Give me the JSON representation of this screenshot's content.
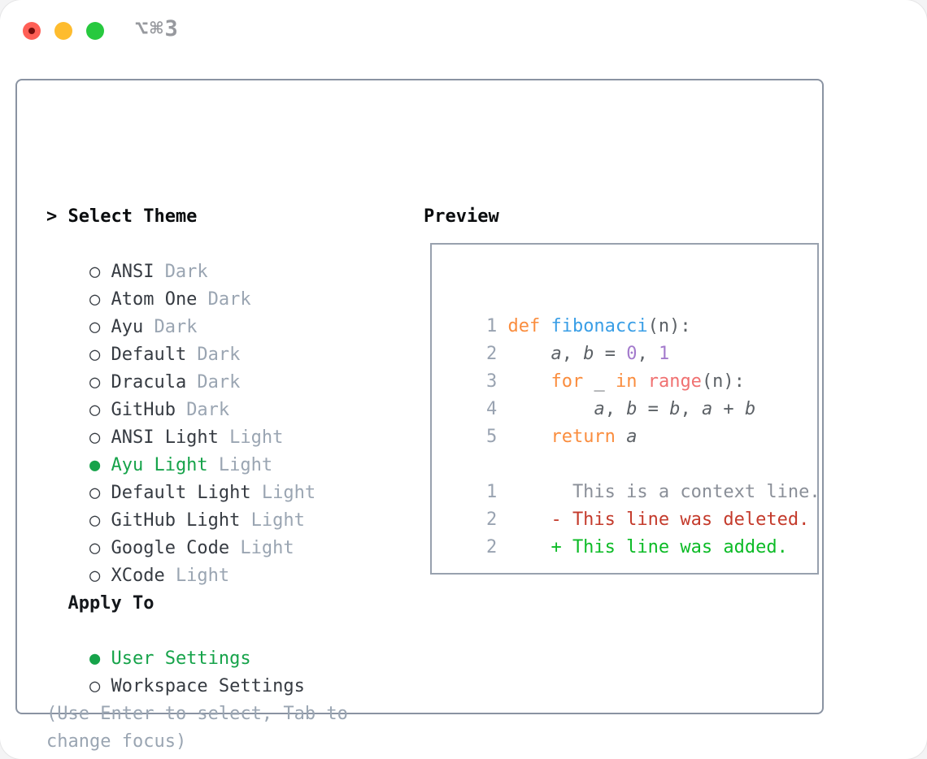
{
  "titlebar": {
    "shortcut": "⌥⌘3",
    "buttons": [
      "close",
      "minimize",
      "zoom"
    ]
  },
  "theme_selector": {
    "header_marker": ">",
    "header": "Select Theme",
    "radio_unselected": "○",
    "radio_selected": "●",
    "items": [
      {
        "name": "ANSI",
        "variant": "Dark",
        "selected": false
      },
      {
        "name": "Atom One",
        "variant": "Dark",
        "selected": false
      },
      {
        "name": "Ayu",
        "variant": "Dark",
        "selected": false
      },
      {
        "name": "Default",
        "variant": "Dark",
        "selected": false
      },
      {
        "name": "Dracula",
        "variant": "Dark",
        "selected": false
      },
      {
        "name": "GitHub",
        "variant": "Dark",
        "selected": false
      },
      {
        "name": "ANSI Light",
        "variant": "Light",
        "selected": false
      },
      {
        "name": "Ayu Light",
        "variant": "Light",
        "selected": true
      },
      {
        "name": "Default Light",
        "variant": "Light",
        "selected": false
      },
      {
        "name": "GitHub Light",
        "variant": "Light",
        "selected": false
      },
      {
        "name": "Google Code",
        "variant": "Light",
        "selected": false
      },
      {
        "name": "XCode",
        "variant": "Light",
        "selected": false
      }
    ]
  },
  "apply_to": {
    "header": "Apply To",
    "options": [
      {
        "label": "User Settings",
        "selected": true
      },
      {
        "label": "Workspace Settings",
        "selected": false
      }
    ]
  },
  "footer": {
    "hint_lines": [
      "(Use Enter to select, Tab to",
      "change focus)"
    ]
  },
  "preview": {
    "title": "Preview",
    "lines": [
      {
        "num": "1",
        "tokens": [
          [
            "kw",
            "def "
          ],
          [
            "fn",
            "fibonacci"
          ],
          [
            "fg",
            "(n):"
          ]
        ]
      },
      {
        "num": "2",
        "tokens": [
          [
            "fg",
            "    "
          ],
          [
            "var",
            "a"
          ],
          [
            "fg",
            ", "
          ],
          [
            "var",
            "b"
          ],
          [
            "fg",
            " = "
          ],
          [
            "cn",
            "0"
          ],
          [
            "fg",
            ", "
          ],
          [
            "cn",
            "1"
          ]
        ]
      },
      {
        "num": "3",
        "tokens": [
          [
            "fg",
            "    "
          ],
          [
            "kw",
            "for"
          ],
          [
            "fg",
            " _ "
          ],
          [
            "kw",
            "in"
          ],
          [
            "fg",
            " "
          ],
          [
            "call",
            "range"
          ],
          [
            "fg",
            "(n):"
          ]
        ]
      },
      {
        "num": "4",
        "tokens": [
          [
            "fg",
            "        "
          ],
          [
            "var",
            "a"
          ],
          [
            "fg",
            ", "
          ],
          [
            "var",
            "b"
          ],
          [
            "fg",
            " = "
          ],
          [
            "var",
            "b"
          ],
          [
            "fg",
            ", "
          ],
          [
            "var",
            "a"
          ],
          [
            "fg",
            " + "
          ],
          [
            "var",
            "b"
          ]
        ]
      },
      {
        "num": "5",
        "tokens": [
          [
            "fg",
            "    "
          ],
          [
            "kw",
            "return"
          ],
          [
            "fg",
            " "
          ],
          [
            "var",
            "a"
          ]
        ]
      },
      {
        "num": "",
        "tokens": []
      },
      {
        "num": "1",
        "tokens": [
          [
            "ctx",
            "      This is a context line."
          ]
        ]
      },
      {
        "num": "2",
        "tokens": [
          [
            "del",
            "    - This line was deleted."
          ]
        ]
      },
      {
        "num": "2",
        "tokens": [
          [
            "add",
            "    + This line was added."
          ]
        ]
      }
    ]
  },
  "colors": {
    "selection_green": "#16A34A",
    "panel_border": "#8A93A2",
    "muted_gray": "#9AA5B2",
    "text_dark": "#363B42",
    "code_foreground": "#5C6166",
    "syntax_keyword_orange": "#FA8D3E",
    "syntax_function_blue": "#399EE6",
    "syntax_constant_purple": "#A37ACC",
    "syntax_call_red": "#F07171",
    "diff_context_gray": "#8A8F98",
    "diff_deleted_red": "#C43B2C",
    "diff_added_green": "#0CBB26",
    "traffic_red": "#FF5F56",
    "traffic_yellow": "#FEBC2E",
    "traffic_green": "#27C93F"
  }
}
